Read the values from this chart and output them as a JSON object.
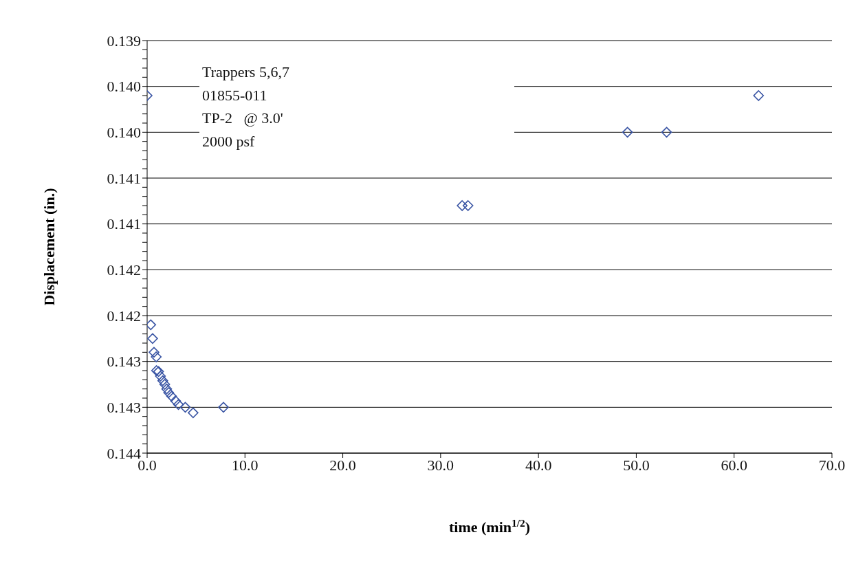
{
  "chart_data": {
    "type": "scatter",
    "xlabel": "time (min$^{1/2}$)",
    "ylabel": "Displacement (in.)",
    "annotations": [
      "Trappers 5,6,7",
      "01855-011",
      "TP-2   @ 3.0'",
      "2000 psf"
    ],
    "x": [
      0,
      0.37,
      0.56,
      0.7,
      0.93,
      0.96,
      1.17,
      1.36,
      1.6,
      1.8,
      2.0,
      2.2,
      2.5,
      2.9,
      3.2,
      3.9,
      4.7,
      7.8,
      32.2,
      32.8,
      49.1,
      53.1,
      62.5
    ],
    "series": [
      {
        "color": "#3a55a4",
        "values": [
          0.1401,
          0.1426,
          0.14275,
          0.1429,
          0.14295,
          0.1431,
          0.14311,
          0.14316,
          0.14321,
          0.14325,
          0.1433,
          0.14334,
          0.14338,
          0.14343,
          0.14347,
          0.1435,
          0.14356,
          0.1435,
          0.1413,
          0.1413,
          0.1405,
          0.1405,
          0.1401
        ]
      }
    ],
    "marker": "diamond",
    "grid": "y",
    "legend": false,
    "xlim": [
      0,
      70
    ],
    "xticks": [
      {
        "value": 0,
        "label": "0.0"
      },
      {
        "value": 10,
        "label": "10.0"
      },
      {
        "value": 20,
        "label": "20.0"
      },
      {
        "value": 30,
        "label": "30.0"
      },
      {
        "value": 40,
        "label": "40.0"
      },
      {
        "value": 50,
        "label": "50.0"
      },
      {
        "value": 60,
        "label": "60.0"
      },
      {
        "value": 70,
        "label": "70.0"
      }
    ],
    "ylim": [
      0.144,
      0.1395
    ],
    "yticks": [
      {
        "value": 0.1395,
        "label": "0.139"
      },
      {
        "value": 0.1396,
        "label": null
      },
      {
        "value": 0.1397,
        "label": null
      },
      {
        "value": 0.1398,
        "label": null
      },
      {
        "value": 0.1399,
        "label": null
      },
      {
        "value": 0.14,
        "label": "0.140"
      },
      {
        "value": 0.1401,
        "label": null
      },
      {
        "value": 0.1402,
        "label": null
      },
      {
        "value": 0.1403,
        "label": null
      },
      {
        "value": 0.1404,
        "label": null
      },
      {
        "value": 0.1405,
        "label": "0.140"
      },
      {
        "value": 0.1406,
        "label": null
      },
      {
        "value": 0.1407,
        "label": null
      },
      {
        "value": 0.1408,
        "label": null
      },
      {
        "value": 0.1409,
        "label": null
      },
      {
        "value": 0.141,
        "label": "0.141"
      },
      {
        "value": 0.1411,
        "label": null
      },
      {
        "value": 0.1412,
        "label": null
      },
      {
        "value": 0.1413,
        "label": null
      },
      {
        "value": 0.1414,
        "label": null
      },
      {
        "value": 0.1415,
        "label": "0.141"
      },
      {
        "value": 0.1416,
        "label": null
      },
      {
        "value": 0.1417,
        "label": null
      },
      {
        "value": 0.1418,
        "label": null
      },
      {
        "value": 0.1419,
        "label": null
      },
      {
        "value": 0.142,
        "label": "0.142"
      },
      {
        "value": 0.1421,
        "label": null
      },
      {
        "value": 0.1422,
        "label": null
      },
      {
        "value": 0.1423,
        "label": null
      },
      {
        "value": 0.1424,
        "label": null
      },
      {
        "value": 0.1425,
        "label": "0.142"
      },
      {
        "value": 0.1426,
        "label": null
      },
      {
        "value": 0.1427,
        "label": null
      },
      {
        "value": 0.1428,
        "label": null
      },
      {
        "value": 0.1429,
        "label": null
      },
      {
        "value": 0.143,
        "label": "0.143"
      },
      {
        "value": 0.1431,
        "label": null
      },
      {
        "value": 0.1432,
        "label": null
      },
      {
        "value": 0.1433,
        "label": null
      },
      {
        "value": 0.1434,
        "label": null
      },
      {
        "value": 0.1435,
        "label": "0.143"
      },
      {
        "value": 0.1436,
        "label": null
      },
      {
        "value": 0.1437,
        "label": null
      },
      {
        "value": 0.1438,
        "label": null
      },
      {
        "value": 0.1439,
        "label": null
      },
      {
        "value": 0.144,
        "label": "0.144"
      }
    ]
  }
}
